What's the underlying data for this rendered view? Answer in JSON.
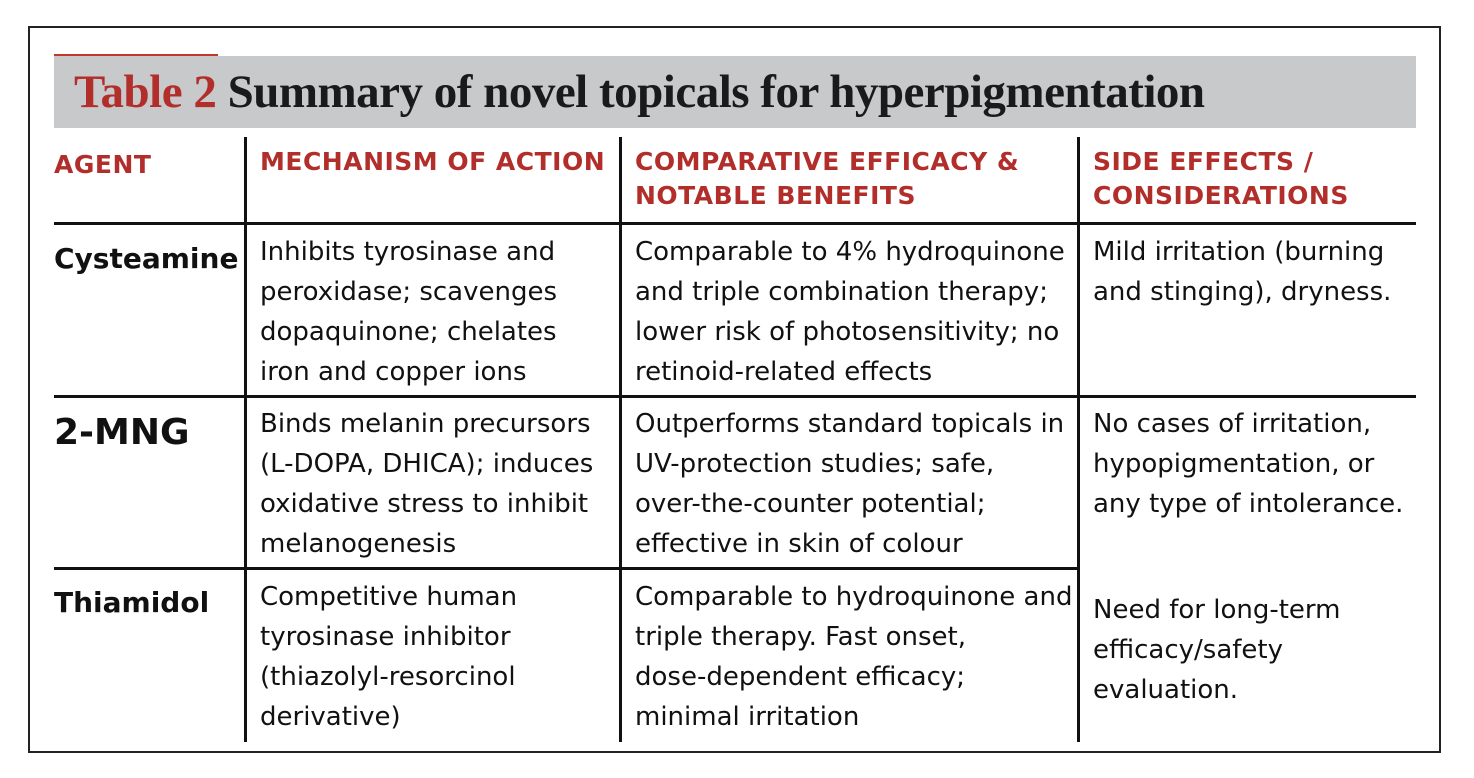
{
  "title": {
    "number": "Table 2",
    "text": "Summary of novel topicals for hyperpigmentation"
  },
  "headers": {
    "agent": "AGENT",
    "mechanism": "MECHANISM OF ACTION",
    "efficacy_line1": "COMPARATIVE EFFICACY &",
    "efficacy_line2": "NOTABLE BENEFITS",
    "side_line1": "SIDE EFFECTS /",
    "side_line2": "CONSIDERATIONS"
  },
  "rows": [
    {
      "agent": "Cysteamine",
      "mechanism": [
        "Inhibits tyrosinase and",
        "peroxidase; scavenges",
        "dopaquinone; chelates",
        "iron and copper ions"
      ],
      "efficacy": [
        "Comparable to 4% hydroquinone",
        "and triple combination therapy;",
        "lower risk of photosensitivity; no",
        "retinoid-related effects"
      ],
      "side_effects": [
        "Mild irritation (burning",
        "and stinging), dryness."
      ]
    },
    {
      "agent": "2-MNG",
      "mechanism": [
        "Binds melanin precursors",
        "(L-DOPA, DHICA); induces",
        "oxidative stress to inhibit",
        "melanogenesis"
      ],
      "efficacy": [
        "Outperforms standard topicals in",
        "UV-protection studies; safe,",
        "over-the-counter potential;",
        "effective in skin of colour"
      ],
      "side_effects": [
        "No cases of irritation,",
        "hypopigmentation, or",
        "any type of intolerance."
      ]
    },
    {
      "agent": "Thiamidol",
      "mechanism": [
        "Competitive human",
        "tyrosinase inhibitor",
        "(thiazolyl-resorcinol",
        "derivative)"
      ],
      "efficacy": [
        "Comparable to hydroquinone and",
        "triple therapy. Fast onset,",
        "dose-dependent efficacy;",
        "minimal irritation"
      ],
      "side_effects": [
        "Need for long-term",
        "efficacy/safety",
        "evaluation."
      ]
    }
  ],
  "colors": {
    "accent_red": "#b22e2b",
    "title_bar_gray": "#c8c9cb",
    "rule_black": "#111111"
  }
}
